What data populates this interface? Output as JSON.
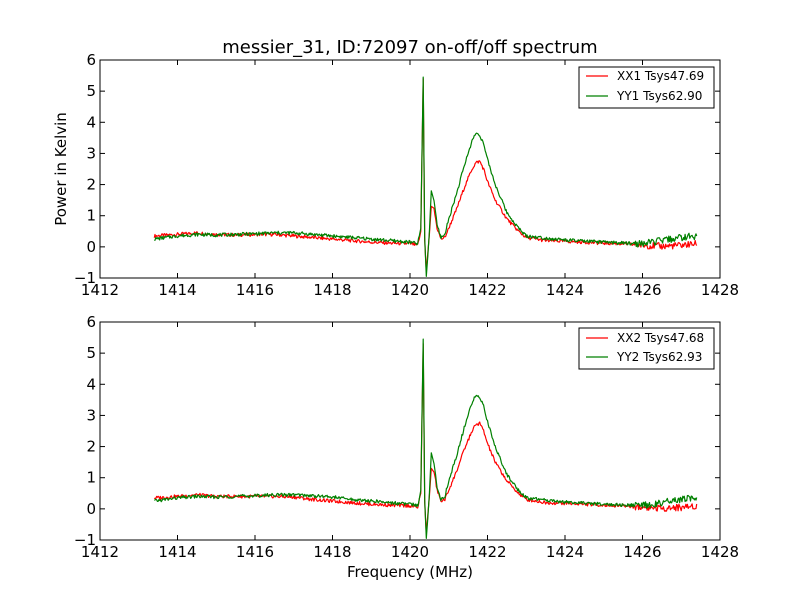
{
  "chart_data": [
    {
      "type": "line",
      "title": "messier_31, ID:72097 on-off/off spectrum",
      "xlabel": "",
      "ylabel": "Power in Kelvin",
      "xlim": [
        1412,
        1428
      ],
      "ylim": [
        -1,
        6
      ],
      "xticks": [
        "1412",
        "1414",
        "1416",
        "1418",
        "1420",
        "1422",
        "1424",
        "1426",
        "1428"
      ],
      "yticks": [
        "−1",
        "0",
        "1",
        "2",
        "3",
        "4",
        "5",
        "6"
      ],
      "legend_position": "top-right",
      "grid": false,
      "series": [
        {
          "name": "XX1 Tsys47.69",
          "color": "#ff0000",
          "x": [
            1413.4,
            1414.0,
            1414.5,
            1415.0,
            1415.5,
            1416.0,
            1416.5,
            1417.0,
            1417.5,
            1418.0,
            1418.5,
            1419.0,
            1419.5,
            1420.0,
            1420.2,
            1420.28,
            1420.34,
            1420.38,
            1420.42,
            1420.46,
            1420.5,
            1420.55,
            1420.62,
            1420.7,
            1420.8,
            1420.9,
            1421.0,
            1421.2,
            1421.4,
            1421.6,
            1421.7,
            1421.8,
            1421.9,
            1422.0,
            1422.2,
            1422.5,
            1422.8,
            1423.0,
            1423.5,
            1424.0,
            1424.5,
            1425.0,
            1425.5,
            1426.0,
            1426.5,
            1427.0,
            1427.4
          ],
          "y": [
            0.35,
            0.4,
            0.45,
            0.4,
            0.38,
            0.4,
            0.4,
            0.35,
            0.3,
            0.25,
            0.2,
            0.15,
            0.12,
            0.1,
            0.05,
            0.5,
            5.4,
            0.2,
            -0.8,
            -0.2,
            0.4,
            1.3,
            1.2,
            0.6,
            0.25,
            0.3,
            0.6,
            1.2,
            1.9,
            2.5,
            2.7,
            2.75,
            2.5,
            2.1,
            1.5,
            0.9,
            0.5,
            0.3,
            0.2,
            0.18,
            0.15,
            0.12,
            0.1,
            0.05,
            0.02,
            0.05,
            0.1
          ]
        },
        {
          "name": "YY1 Tsys62.90",
          "color": "#008000",
          "x": [
            1413.4,
            1414.0,
            1414.5,
            1415.0,
            1415.5,
            1416.0,
            1416.5,
            1417.0,
            1417.5,
            1418.0,
            1418.5,
            1419.0,
            1419.5,
            1420.0,
            1420.2,
            1420.28,
            1420.34,
            1420.38,
            1420.42,
            1420.46,
            1420.5,
            1420.55,
            1420.62,
            1420.7,
            1420.8,
            1420.9,
            1421.0,
            1421.2,
            1421.4,
            1421.6,
            1421.7,
            1421.8,
            1421.9,
            1422.0,
            1422.2,
            1422.5,
            1422.8,
            1423.0,
            1423.5,
            1424.0,
            1424.5,
            1425.0,
            1425.5,
            1426.0,
            1426.5,
            1427.0,
            1427.4
          ],
          "y": [
            0.25,
            0.35,
            0.4,
            0.38,
            0.4,
            0.42,
            0.45,
            0.45,
            0.4,
            0.35,
            0.3,
            0.25,
            0.2,
            0.15,
            0.1,
            0.6,
            5.45,
            0.3,
            -0.95,
            -0.3,
            0.5,
            1.8,
            1.5,
            0.7,
            0.3,
            0.4,
            0.9,
            1.7,
            2.6,
            3.4,
            3.65,
            3.6,
            3.3,
            2.8,
            2.0,
            1.1,
            0.6,
            0.35,
            0.28,
            0.22,
            0.18,
            0.15,
            0.12,
            0.1,
            0.2,
            0.3,
            0.35
          ]
        }
      ]
    },
    {
      "type": "line",
      "title": "",
      "xlabel": "Frequency (MHz)",
      "ylabel": "",
      "xlim": [
        1412,
        1428
      ],
      "ylim": [
        -1,
        6
      ],
      "xticks": [
        "1412",
        "1414",
        "1416",
        "1418",
        "1420",
        "1422",
        "1424",
        "1426",
        "1428"
      ],
      "yticks": [
        "−1",
        "0",
        "1",
        "2",
        "3",
        "4",
        "5",
        "6"
      ],
      "legend_position": "top-right",
      "grid": false,
      "series": [
        {
          "name": "XX2 Tsys47.68",
          "color": "#ff0000",
          "x": [
            1413.4,
            1414.0,
            1414.5,
            1415.0,
            1415.5,
            1416.0,
            1416.5,
            1417.0,
            1417.5,
            1418.0,
            1418.5,
            1419.0,
            1419.5,
            1420.0,
            1420.2,
            1420.28,
            1420.34,
            1420.38,
            1420.42,
            1420.46,
            1420.5,
            1420.55,
            1420.62,
            1420.7,
            1420.8,
            1420.9,
            1421.0,
            1421.2,
            1421.4,
            1421.6,
            1421.7,
            1421.8,
            1421.9,
            1422.0,
            1422.2,
            1422.5,
            1422.8,
            1423.0,
            1423.5,
            1424.0,
            1424.5,
            1425.0,
            1425.5,
            1426.0,
            1426.5,
            1427.0,
            1427.4
          ],
          "y": [
            0.35,
            0.4,
            0.45,
            0.4,
            0.4,
            0.4,
            0.4,
            0.38,
            0.3,
            0.25,
            0.2,
            0.15,
            0.12,
            0.1,
            0.05,
            0.5,
            5.3,
            0.2,
            -0.8,
            -0.2,
            0.4,
            1.3,
            1.2,
            0.6,
            0.25,
            0.3,
            0.6,
            1.2,
            1.9,
            2.5,
            2.7,
            2.75,
            2.5,
            2.1,
            1.5,
            0.9,
            0.5,
            0.3,
            0.2,
            0.18,
            0.15,
            0.12,
            0.1,
            0.05,
            0.02,
            0.05,
            0.1
          ]
        },
        {
          "name": "YY2 Tsys62.93",
          "color": "#008000",
          "x": [
            1413.4,
            1414.0,
            1414.5,
            1415.0,
            1415.5,
            1416.0,
            1416.5,
            1417.0,
            1417.5,
            1418.0,
            1418.5,
            1419.0,
            1419.5,
            1420.0,
            1420.2,
            1420.28,
            1420.34,
            1420.38,
            1420.42,
            1420.46,
            1420.5,
            1420.55,
            1420.62,
            1420.7,
            1420.8,
            1420.9,
            1421.0,
            1421.2,
            1421.4,
            1421.6,
            1421.7,
            1421.8,
            1421.9,
            1422.0,
            1422.2,
            1422.5,
            1422.8,
            1423.0,
            1423.5,
            1424.0,
            1424.5,
            1425.0,
            1425.5,
            1426.0,
            1426.5,
            1427.0,
            1427.4
          ],
          "y": [
            0.25,
            0.35,
            0.4,
            0.38,
            0.4,
            0.42,
            0.45,
            0.45,
            0.42,
            0.38,
            0.3,
            0.25,
            0.2,
            0.15,
            0.1,
            0.6,
            5.45,
            0.3,
            -0.95,
            -0.3,
            0.5,
            1.8,
            1.5,
            0.7,
            0.3,
            0.4,
            0.9,
            1.7,
            2.6,
            3.4,
            3.65,
            3.6,
            3.3,
            2.8,
            2.0,
            1.1,
            0.6,
            0.35,
            0.28,
            0.22,
            0.18,
            0.15,
            0.12,
            0.1,
            0.2,
            0.3,
            0.35
          ]
        }
      ]
    }
  ]
}
